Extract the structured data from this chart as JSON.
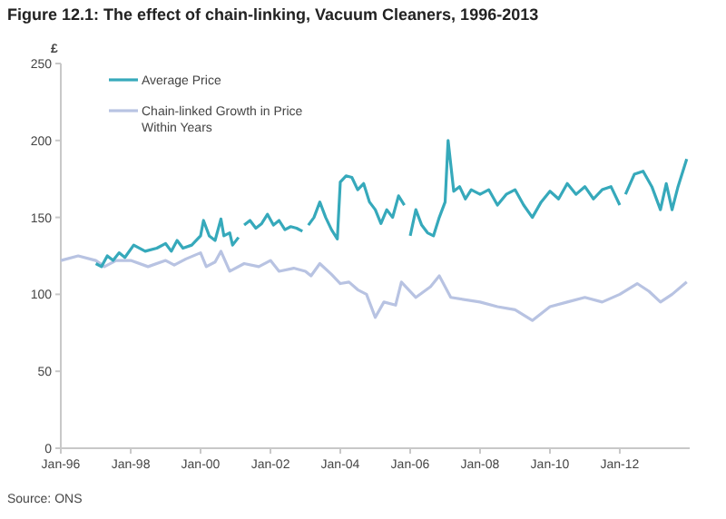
{
  "chart_data": {
    "type": "line",
    "title": "Figure 12.1: The effect of chain-linking, Vacuum Cleaners, 1996-2013",
    "ylabel": "£",
    "annotations": [
      "Source: ONS"
    ],
    "xlim": [
      "1996-01",
      "2014-01"
    ],
    "xticks": [
      {
        "value": "1996-01",
        "label": "Jan-96"
      },
      {
        "value": "1998-01",
        "label": "Jan-98"
      },
      {
        "value": "2000-01",
        "label": "Jan-00"
      },
      {
        "value": "2002-01",
        "label": "Jan-02"
      },
      {
        "value": "2004-01",
        "label": "Jan-04"
      },
      {
        "value": "2006-01",
        "label": "Jan-06"
      },
      {
        "value": "2008-01",
        "label": "Jan-08"
      },
      {
        "value": "2010-01",
        "label": "Jan-10"
      },
      {
        "value": "2012-01",
        "label": "Jan-12"
      }
    ],
    "ylim": [
      0,
      250
    ],
    "yticks": [
      0,
      50,
      100,
      150,
      200,
      250
    ],
    "grid": false,
    "legend": "top left",
    "series": [
      {
        "name": "Average Price",
        "color": "#36a9bb",
        "x": [
          "1997-01",
          "1997-03",
          "1997-05",
          "1997-07",
          "1997-09",
          "1997-11",
          "1998-02",
          "1998-06",
          "1998-10",
          "1999-01",
          "1999-03",
          "1999-05",
          "1999-07",
          "1999-10",
          "2000-01",
          "2000-02",
          "2000-04",
          "2000-06",
          "2000-08",
          "2000-09",
          "2000-11",
          "2000-12",
          "2001-02",
          "2001-03",
          "2001-04",
          "2001-06",
          "2001-08",
          "2001-10",
          "2001-12",
          "2002-02",
          "2002-04",
          "2002-06",
          "2002-08",
          "2002-10",
          "2002-12",
          "2003-01",
          "2003-02",
          "2003-04",
          "2003-06",
          "2003-08",
          "2003-10",
          "2003-12",
          "2004-01",
          "2004-03",
          "2004-05",
          "2004-07",
          "2004-09",
          "2004-11",
          "2005-01",
          "2005-03",
          "2005-05",
          "2005-07",
          "2005-09",
          "2005-11",
          "2005-12",
          "2006-01",
          "2006-03",
          "2006-05",
          "2006-07",
          "2006-09",
          "2006-11",
          "2007-01",
          "2007-02",
          "2007-04",
          "2007-06",
          "2007-08",
          "2007-10",
          "2008-01",
          "2008-04",
          "2008-07",
          "2008-10",
          "2009-01",
          "2009-04",
          "2009-07",
          "2009-10",
          "2010-01",
          "2010-04",
          "2010-07",
          "2010-10",
          "2011-01",
          "2011-04",
          "2011-07",
          "2011-10",
          "2012-01",
          "2012-02",
          "2012-03",
          "2012-06",
          "2012-09",
          "2012-12",
          "2013-03",
          "2013-05",
          "2013-07",
          "2013-09",
          "2013-12"
        ],
        "values": [
          120,
          118,
          125,
          122,
          127,
          124,
          132,
          128,
          130,
          133,
          128,
          135,
          130,
          132,
          138,
          148,
          138,
          135,
          149,
          138,
          140,
          132,
          137,
          null,
          145,
          148,
          143,
          146,
          152,
          145,
          148,
          142,
          144,
          143,
          141,
          null,
          145,
          150,
          160,
          150,
          142,
          136,
          173,
          177,
          176,
          168,
          172,
          160,
          155,
          146,
          155,
          150,
          164,
          158,
          null,
          138,
          155,
          145,
          140,
          138,
          150,
          160,
          200,
          167,
          170,
          162,
          168,
          165,
          168,
          158,
          165,
          168,
          158,
          150,
          160,
          167,
          162,
          172,
          165,
          170,
          162,
          168,
          170,
          158,
          null,
          165,
          178,
          180,
          170,
          155,
          172,
          155,
          170,
          188
        ]
      },
      {
        "name": "Chain-linked Growth in Price Within Years",
        "color": "#b8c3e2",
        "x": [
          "1996-01",
          "1996-07",
          "1997-01",
          "1997-04",
          "1997-08",
          "1998-01",
          "1998-07",
          "1999-01",
          "1999-04",
          "1999-08",
          "2000-01",
          "2000-03",
          "2000-06",
          "2000-08",
          "2000-11",
          "2001-04",
          "2001-09",
          "2002-01",
          "2002-04",
          "2002-09",
          "2003-01",
          "2003-03",
          "2003-06",
          "2003-10",
          "2004-01",
          "2004-04",
          "2004-07",
          "2004-10",
          "2005-01",
          "2005-04",
          "2005-08",
          "2005-10",
          "2006-03",
          "2006-08",
          "2006-11",
          "2007-03",
          "2008-01",
          "2008-07",
          "2009-01",
          "2009-07",
          "2010-01",
          "2010-07",
          "2011-01",
          "2011-07",
          "2012-01",
          "2012-07",
          "2012-11",
          "2013-03",
          "2013-07",
          "2013-12"
        ],
        "values": [
          122,
          125,
          122,
          118,
          122,
          122,
          118,
          122,
          119,
          123,
          127,
          118,
          121,
          128,
          115,
          120,
          118,
          122,
          115,
          117,
          115,
          112,
          120,
          113,
          107,
          108,
          103,
          100,
          85,
          95,
          93,
          108,
          98,
          105,
          112,
          98,
          95,
          92,
          90,
          83,
          92,
          95,
          98,
          95,
          100,
          107,
          102,
          95,
          100,
          108
        ]
      }
    ]
  }
}
